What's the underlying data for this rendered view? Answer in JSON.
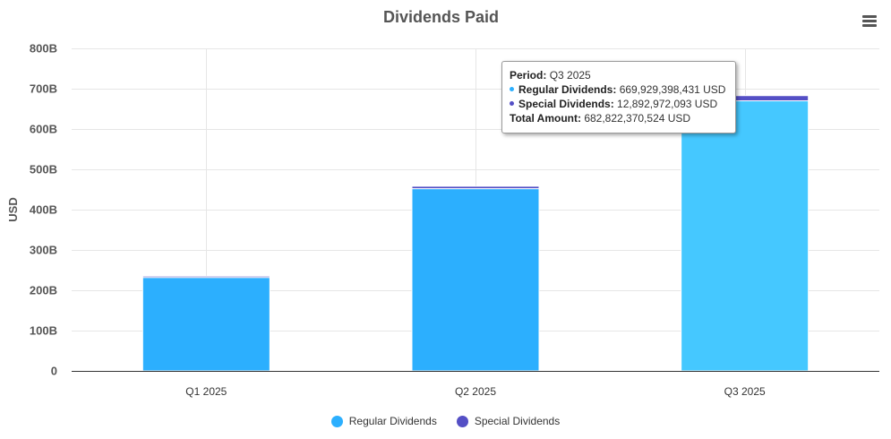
{
  "chart": {
    "title": "Dividends Paid",
    "menu_icon": "hamburger-menu-icon"
  },
  "chart_data": {
    "type": "bar",
    "stacked": true,
    "title": "Dividends Paid",
    "xlabel": "",
    "ylabel": "USD",
    "ylim": [
      0,
      800000000000
    ],
    "yticks": [
      "0",
      "100B",
      "200B",
      "300B",
      "400B",
      "500B",
      "600B",
      "700B",
      "800B"
    ],
    "categories": [
      "Q1 2025",
      "Q2 2025",
      "Q3 2025"
    ],
    "series": [
      {
        "name": "Regular Dividends",
        "color": "#2caffe",
        "values": [
          232000000000,
          452000000000,
          669929398431
        ]
      },
      {
        "name": "Special Dividends",
        "color": "#544fc5",
        "values": [
          3000000000,
          6000000000,
          12892972093
        ]
      }
    ],
    "highlighted_category": "Q3 2025",
    "highlight_color": "#45c8ff",
    "grid": true,
    "legend_position": "bottom-center"
  },
  "tooltip": {
    "period_label": "Period:",
    "period_value": "Q3 2025",
    "regular_label": "Regular Dividends:",
    "regular_value": "669,929,398,431 USD",
    "special_label": "Special Dividends:",
    "special_value": "12,892,972,093 USD",
    "total_label": "Total Amount:",
    "total_value": "682,822,370,524 USD"
  },
  "legend": {
    "items": [
      {
        "label": "Regular Dividends",
        "color": "#2caffe"
      },
      {
        "label": "Special Dividends",
        "color": "#544fc5"
      }
    ]
  }
}
